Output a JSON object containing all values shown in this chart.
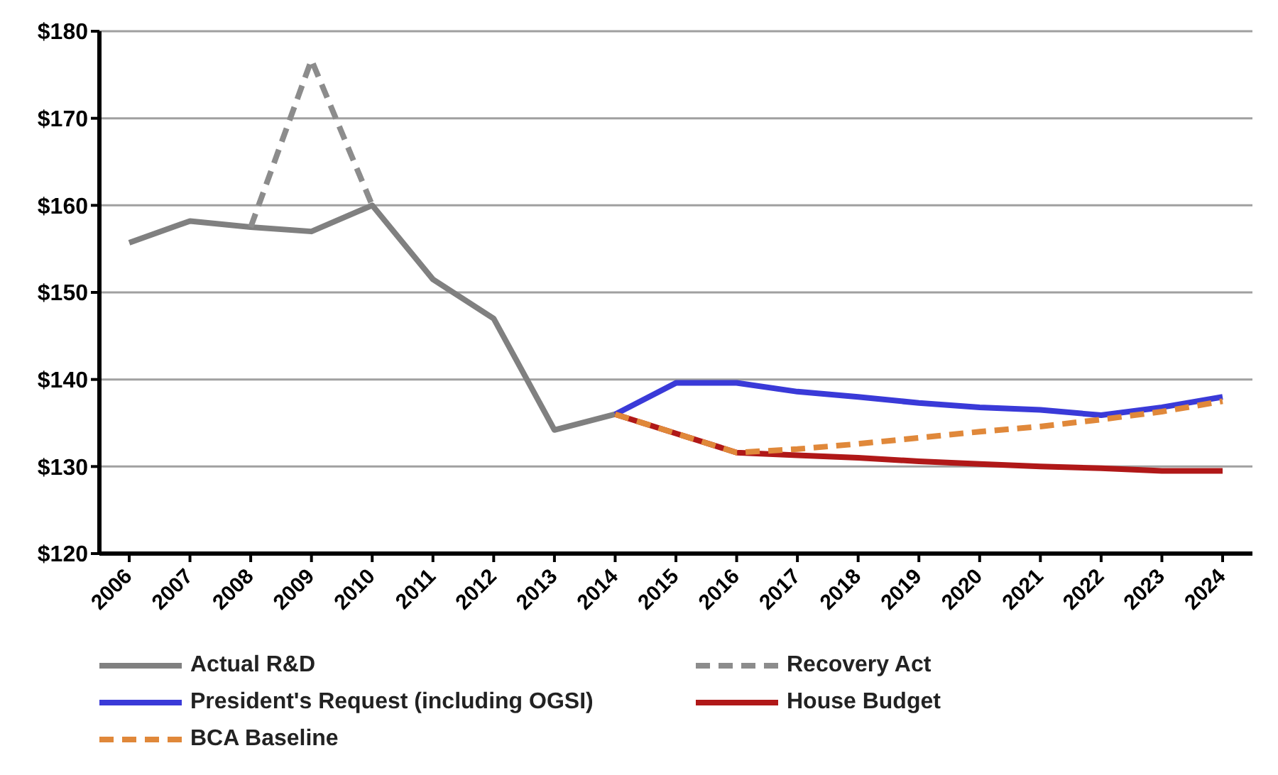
{
  "chart_data": {
    "type": "line",
    "categories": [
      "2006",
      "2007",
      "2008",
      "2009",
      "2010",
      "2011",
      "2012",
      "2013",
      "2014",
      "2015",
      "2016",
      "2017",
      "2018",
      "2019",
      "2020",
      "2021",
      "2022",
      "2023",
      "2024"
    ],
    "series": [
      {
        "name": "Actual R&D",
        "color": "#808080",
        "line_style": "solid",
        "values": [
          155.7,
          158.2,
          157.5,
          157,
          160,
          151.5,
          147,
          134.2,
          136,
          null,
          null,
          null,
          null,
          null,
          null,
          null,
          null,
          null,
          null
        ]
      },
      {
        "name": "Recovery Act",
        "color": "#8c8c8c",
        "line_style": "dashed",
        "values": [
          null,
          null,
          157.5,
          176.7,
          160,
          null,
          null,
          null,
          null,
          null,
          null,
          null,
          null,
          null,
          null,
          null,
          null,
          null,
          null
        ]
      },
      {
        "name": "President's Request (including OGSI)",
        "color": "#3a3ad8",
        "line_style": "solid",
        "values": [
          null,
          null,
          null,
          null,
          null,
          null,
          null,
          null,
          136,
          139.6,
          139.6,
          138.6,
          138,
          137.3,
          136.8,
          136.5,
          135.9,
          136.8,
          138
        ]
      },
      {
        "name": "House Budget",
        "color": "#b01818",
        "line_style": "solid",
        "values": [
          null,
          null,
          null,
          null,
          null,
          null,
          null,
          null,
          136,
          133.8,
          131.6,
          131.3,
          131,
          130.6,
          130.3,
          130,
          129.8,
          129.5,
          129.5
        ]
      },
      {
        "name": "BCA Baseline",
        "color": "#e0883a",
        "line_style": "dashed",
        "values": [
          null,
          null,
          null,
          null,
          null,
          null,
          null,
          null,
          136,
          133.8,
          131.6,
          132,
          132.6,
          133.3,
          134,
          134.6,
          135.4,
          136.3,
          137.5
        ]
      }
    ],
    "ylim": [
      120,
      180
    ],
    "yticks": [
      {
        "value": 120,
        "label": "$120"
      },
      {
        "value": 130,
        "label": "$130"
      },
      {
        "value": 140,
        "label": "$140"
      },
      {
        "value": 150,
        "label": "$150"
      },
      {
        "value": 160,
        "label": "$160"
      },
      {
        "value": 170,
        "label": "$170"
      },
      {
        "value": 180,
        "label": "$180"
      }
    ],
    "grid": "y",
    "legend": "bottom",
    "marker": "none"
  }
}
